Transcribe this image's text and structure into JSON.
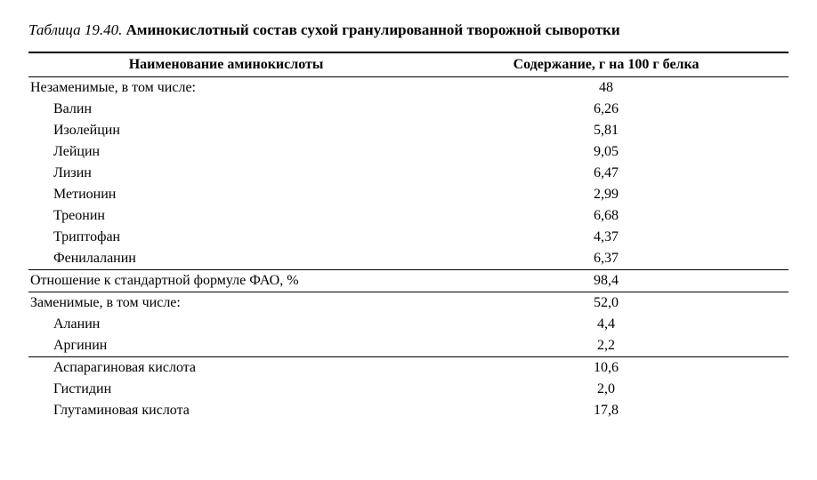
{
  "title_label": "Таблица 19.40.",
  "title_text": "Аминокислотный состав сухой гранулированной творожной сыворотки",
  "columns": {
    "name": "Наименование аминокислоты",
    "value": "Содержание, г на 100 г белка"
  },
  "rows": [
    {
      "name": "Незаменимые, в том числе:",
      "value": "48",
      "kind": "group",
      "border_top": true
    },
    {
      "name": "Валин",
      "value": "6,26",
      "kind": "indent"
    },
    {
      "name": "Изолейцин",
      "value": "5,81",
      "kind": "indent"
    },
    {
      "name": "Лейцин",
      "value": "9,05",
      "kind": "indent"
    },
    {
      "name": "Лизин",
      "value": "6,47",
      "kind": "indent"
    },
    {
      "name": "Метионин",
      "value": "2,99",
      "kind": "indent"
    },
    {
      "name": "Треонин",
      "value": "6,68",
      "kind": "indent"
    },
    {
      "name": "Триптофан",
      "value": "4,37",
      "kind": "indent"
    },
    {
      "name": "Фенилаланин",
      "value": "6,37",
      "kind": "indent"
    },
    {
      "name": "Отношение к стандартной формуле ФАО, %",
      "value": "98,4",
      "kind": "group",
      "border_top": true
    },
    {
      "name": "Заменимые, в том числе:",
      "value": "52,0",
      "kind": "group",
      "border_top": true
    },
    {
      "name": "Аланин",
      "value": "4,4",
      "kind": "indent"
    },
    {
      "name": "Аргинин",
      "value": "2,2",
      "kind": "indent"
    },
    {
      "name": "Аспарагиновая кислота",
      "value": "10,6",
      "kind": "indent",
      "border_top": true
    },
    {
      "name": "Гистидин",
      "value": "2,0",
      "kind": "indent"
    },
    {
      "name": "Глутаминовая кислота",
      "value": "17,8",
      "kind": "indent"
    }
  ]
}
